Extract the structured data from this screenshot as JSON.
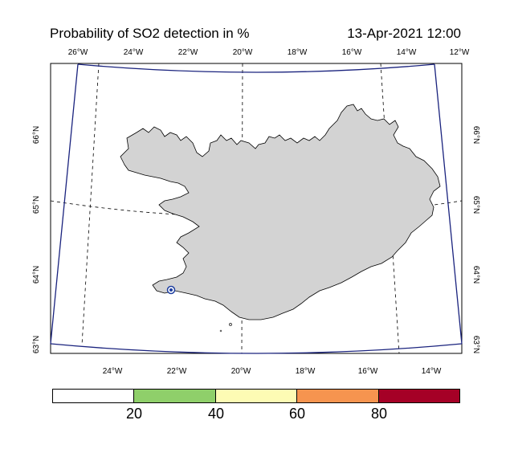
{
  "header": {
    "title": "Probability of SO2 detection in %",
    "timestamp": "13-Apr-2021 12:00"
  },
  "map": {
    "region": "Iceland",
    "top_longitude_labels": [
      "26°W",
      "24°W",
      "22°W",
      "20°W",
      "18°W",
      "16°W",
      "14°W",
      "12°W"
    ],
    "bottom_longitude_labels": [
      "24°W",
      "22°W",
      "20°W",
      "18°W",
      "16°W",
      "14°W"
    ],
    "left_latitude_labels": [
      "66°N",
      "65°N",
      "64°N",
      "63°N"
    ],
    "right_latitude_labels": [
      "66°N",
      "65°N",
      "64°N",
      "63°N"
    ],
    "colors": {
      "land": "#d3d3d3",
      "domain_outline": "#1a237e",
      "marker": "#1f3fa0"
    }
  },
  "colorbar": {
    "colors": [
      "#ffffff",
      "#8fcf6a",
      "#fdfbb4",
      "#f6944f",
      "#a50026"
    ],
    "labels": [
      "20",
      "40",
      "60",
      "80"
    ]
  }
}
